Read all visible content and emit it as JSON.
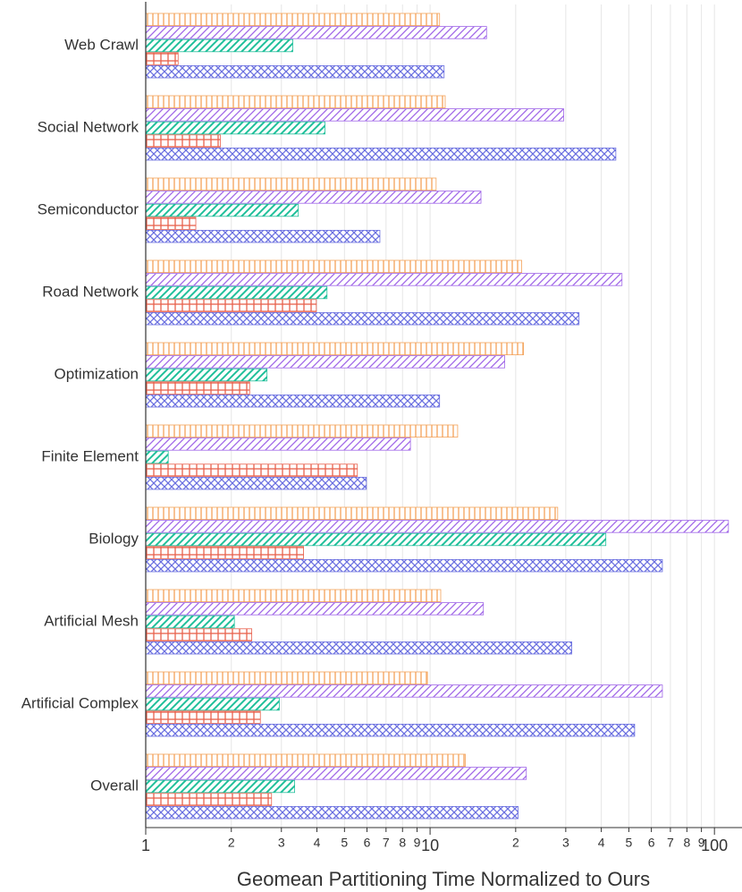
{
  "chart_data": {
    "type": "hbar",
    "xlabel": "Geomean Partitioning Time Normalized to Ours",
    "categories": [
      "Web Crawl",
      "Social Network",
      "Semiconductor",
      "Road Network",
      "Optimization",
      "Finite Element",
      "Biology",
      "Artificial Mesh",
      "Artificial Complex",
      "Overall"
    ],
    "series": [
      {
        "color": "#f4a259",
        "values": [
          10.8,
          11.3,
          10.5,
          21.0,
          21.3,
          12.5,
          28.1,
          10.9,
          9.79,
          13.3
        ]
      },
      {
        "color": "#a066e8",
        "values": [
          15.8,
          29.5,
          15.1,
          47.3,
          18.3,
          8.53,
          112,
          15.4,
          65.6,
          21.8
        ]
      },
      {
        "color": "#1fbf9a",
        "values": [
          3.29,
          4.27,
          3.44,
          4.34,
          2.67,
          1.2,
          41.5,
          2.05,
          2.95,
          3.34
        ]
      },
      {
        "color": "#e8604c",
        "values": [
          1.3,
          1.83,
          1.5,
          3.98,
          2.32,
          5.55,
          3.59,
          2.36,
          2.53,
          2.77
        ]
      },
      {
        "color": "#6a6fe0",
        "values": [
          11.2,
          45.0,
          6.66,
          33.4,
          10.8,
          5.97,
          65.6,
          31.5,
          52.4,
          20.4
        ]
      }
    ],
    "xscale": "log",
    "xlim": [
      1,
      125
    ],
    "xticks": [
      1,
      2,
      3,
      4,
      5,
      6,
      7,
      8,
      9,
      10,
      {
        "value": 20,
        "label": "2"
      },
      {
        "value": 30,
        "label": "3"
      },
      {
        "value": 40,
        "label": "4"
      },
      {
        "value": 50,
        "label": "5"
      },
      {
        "value": 60,
        "label": "6"
      },
      {
        "value": 70,
        "label": "7"
      },
      {
        "value": 80,
        "label": "8"
      },
      {
        "value": 90,
        "label": "9"
      },
      100
    ],
    "grid": true
  }
}
